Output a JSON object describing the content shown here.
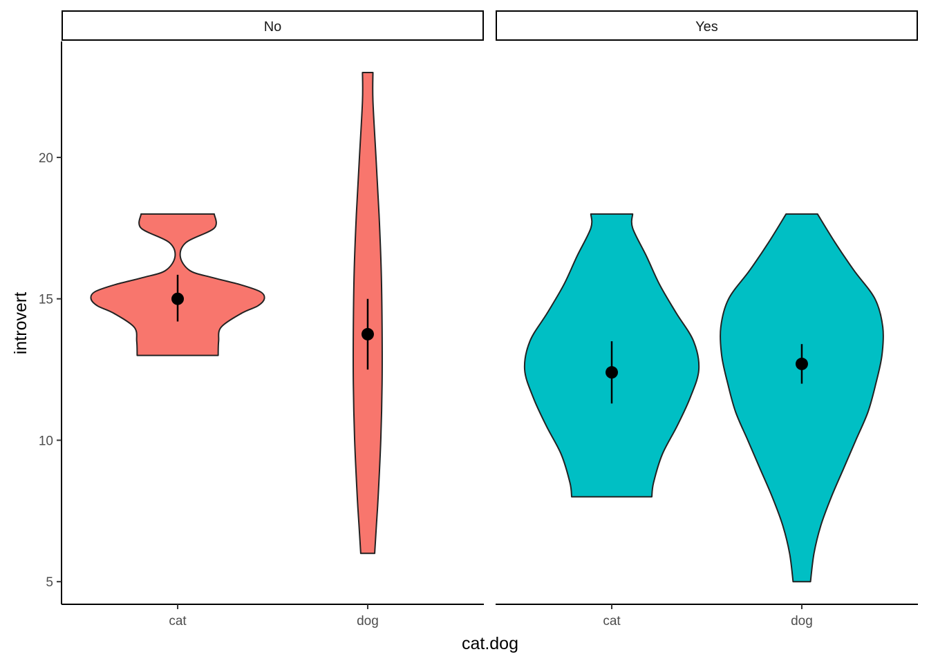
{
  "chart_data": {
    "type": "violin",
    "xlabel": "cat.dog",
    "ylabel": "introvert",
    "ylim": [
      4.2,
      24.1
    ],
    "yticks": [
      5,
      10,
      15,
      20
    ],
    "categories": [
      "cat",
      "dog"
    ],
    "facets": [
      {
        "label": "No",
        "color": "#F8766D",
        "groups": [
          {
            "category": "cat",
            "mean": 15.0,
            "ci_low": 14.2,
            "ci_high": 15.85,
            "density": [
              [
                13,
                0.465
              ],
              [
                13.5,
                0.47
              ],
              [
                14,
                0.5
              ],
              [
                14.5,
                0.74
              ],
              [
                14.75,
                0.92
              ],
              [
                15,
                0.995
              ],
              [
                15.25,
                0.95
              ],
              [
                15.5,
                0.72
              ],
              [
                15.75,
                0.4
              ],
              [
                16,
                0.14
              ],
              [
                16.5,
                0.03
              ],
              [
                17,
                0.1
              ],
              [
                17.5,
                0.42
              ],
              [
                18,
                0.42
              ]
            ]
          },
          {
            "category": "dog",
            "mean": 13.75,
            "ci_low": 12.5,
            "ci_high": 15.0,
            "density": [
              [
                6,
                0.08
              ],
              [
                7,
                0.1
              ],
              [
                8,
                0.12
              ],
              [
                10,
                0.15
              ],
              [
                12,
                0.165
              ],
              [
                14,
                0.165
              ],
              [
                16,
                0.155
              ],
              [
                18,
                0.13
              ],
              [
                20,
                0.095
              ],
              [
                22,
                0.06
              ],
              [
                23,
                0.06
              ]
            ]
          }
        ]
      },
      {
        "label": "Yes",
        "color": "#00BFC4",
        "groups": [
          {
            "category": "cat",
            "mean": 12.4,
            "ci_low": 11.3,
            "ci_high": 13.5,
            "density": [
              [
                8,
                0.46
              ],
              [
                8.5,
                0.48
              ],
              [
                9.5,
                0.58
              ],
              [
                10.5,
                0.75
              ],
              [
                11.5,
                0.9
              ],
              [
                12.5,
                1.0
              ],
              [
                13.5,
                0.94
              ],
              [
                14.5,
                0.74
              ],
              [
                15.5,
                0.55
              ],
              [
                16.5,
                0.4
              ],
              [
                17.5,
                0.24
              ],
              [
                18,
                0.24
              ]
            ]
          },
          {
            "category": "dog",
            "mean": 12.7,
            "ci_low": 12.0,
            "ci_high": 13.4,
            "density": [
              [
                5,
                0.1
              ],
              [
                6,
                0.14
              ],
              [
                7,
                0.22
              ],
              [
                8,
                0.34
              ],
              [
                9,
                0.48
              ],
              [
                10,
                0.62
              ],
              [
                11,
                0.76
              ],
              [
                12,
                0.85
              ],
              [
                13,
                0.92
              ],
              [
                14,
                0.93
              ],
              [
                15,
                0.84
              ],
              [
                16,
                0.6
              ],
              [
                17,
                0.38
              ],
              [
                18,
                0.18
              ]
            ]
          }
        ]
      }
    ]
  }
}
